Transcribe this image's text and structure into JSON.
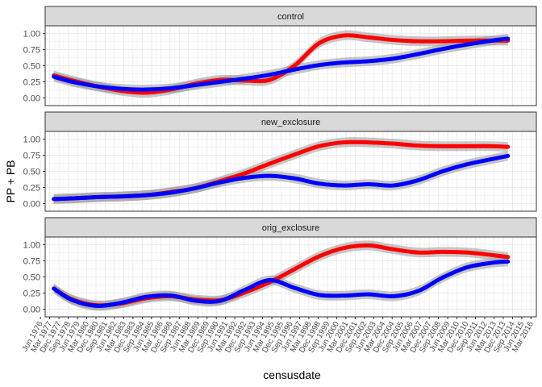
{
  "chart_data": {
    "type": "line",
    "xlabel": "censusdate",
    "ylabel": "PP + PB",
    "ylim": [
      -0.12,
      1.12
    ],
    "yticks": [
      "0.00",
      "0.25",
      "0.50",
      "0.75",
      "1.00"
    ],
    "ytick_values": [
      0,
      0.25,
      0.5,
      0.75,
      1.0
    ],
    "xlim": [
      1976.8,
      2016.6
    ],
    "xtick_labels": [
      "Jun 1976",
      "Mar 1977",
      "Dec 1977",
      "Sep 1978",
      "Jun 1979",
      "Mar 1980",
      "Dec 1980",
      "Sep 1981",
      "Jun 1982",
      "Mar 1983",
      "Dec 1983",
      "Sep 1984",
      "Jun 1985",
      "Mar 1986",
      "Dec 1986",
      "Sep 1987",
      "Jun 1988",
      "Mar 1989",
      "Dec 1989",
      "Sep 1990",
      "Jun 1991",
      "Mar 1992",
      "Dec 1992",
      "Sep 1993",
      "Jun 1994",
      "Mar 1995",
      "Dec 1995",
      "Sep 1996",
      "Jun 1997",
      "Mar 1998",
      "Dec 1998",
      "Sep 1999",
      "Jun 2000",
      "Mar 2001",
      "Dec 2001",
      "Sep 2002",
      "Jun 2003",
      "Mar 2004",
      "Dec 2004",
      "Sep 2005",
      "Jun 2006",
      "Mar 2007",
      "Dec 2007",
      "Sep 2008",
      "Jun 2009",
      "Mar 2010",
      "Dec 2010",
      "Sep 2011",
      "Jun 2012",
      "Mar 2013",
      "Dec 2013",
      "Sep 2014",
      "Jun 2015",
      "Mar 2016"
    ],
    "x": [
      1977.5,
      1979,
      1981,
      1983,
      1985,
      1987,
      1989,
      1991,
      1993,
      1995,
      1997,
      1999,
      2001,
      2003,
      2005,
      2007,
      2009,
      2011,
      2013,
      2014.3
    ],
    "grid": true,
    "panels": [
      {
        "strip": "control",
        "series": [
          {
            "color": "#ff0000",
            "values": [
              0.35,
              0.27,
              0.18,
              0.11,
              0.08,
              0.13,
              0.22,
              0.28,
              0.27,
              0.28,
              0.5,
              0.85,
              0.97,
              0.94,
              0.9,
              0.88,
              0.88,
              0.89,
              0.89,
              0.89
            ]
          },
          {
            "color": "#0000ff",
            "values": [
              0.33,
              0.25,
              0.18,
              0.14,
              0.13,
              0.15,
              0.2,
              0.25,
              0.3,
              0.36,
              0.44,
              0.51,
              0.55,
              0.57,
              0.61,
              0.68,
              0.76,
              0.83,
              0.89,
              0.92
            ]
          }
        ]
      },
      {
        "strip": "new_exclosure",
        "series": [
          {
            "color": "#ff0000",
            "values": [
              0.07,
              0.08,
              0.1,
              0.11,
              0.13,
              0.18,
              0.24,
              0.35,
              0.47,
              0.62,
              0.76,
              0.89,
              0.95,
              0.95,
              0.93,
              0.9,
              0.89,
              0.89,
              0.89,
              0.88
            ]
          },
          {
            "color": "#0000ff",
            "values": [
              0.07,
              0.08,
              0.1,
              0.11,
              0.13,
              0.17,
              0.24,
              0.33,
              0.4,
              0.43,
              0.39,
              0.31,
              0.28,
              0.3,
              0.28,
              0.36,
              0.5,
              0.61,
              0.69,
              0.74
            ]
          }
        ]
      },
      {
        "strip": "orig_exclosure",
        "series": [
          {
            "color": "#ff0000",
            "values": [
              0.32,
              0.15,
              0.06,
              0.09,
              0.17,
              0.2,
              0.15,
              0.14,
              0.26,
              0.42,
              0.62,
              0.82,
              0.95,
              0.99,
              0.93,
              0.88,
              0.89,
              0.88,
              0.84,
              0.81
            ]
          },
          {
            "color": "#0000ff",
            "values": [
              0.32,
              0.14,
              0.05,
              0.1,
              0.19,
              0.21,
              0.13,
              0.13,
              0.3,
              0.45,
              0.33,
              0.22,
              0.21,
              0.23,
              0.2,
              0.28,
              0.49,
              0.65,
              0.72,
              0.74
            ]
          }
        ]
      }
    ]
  }
}
